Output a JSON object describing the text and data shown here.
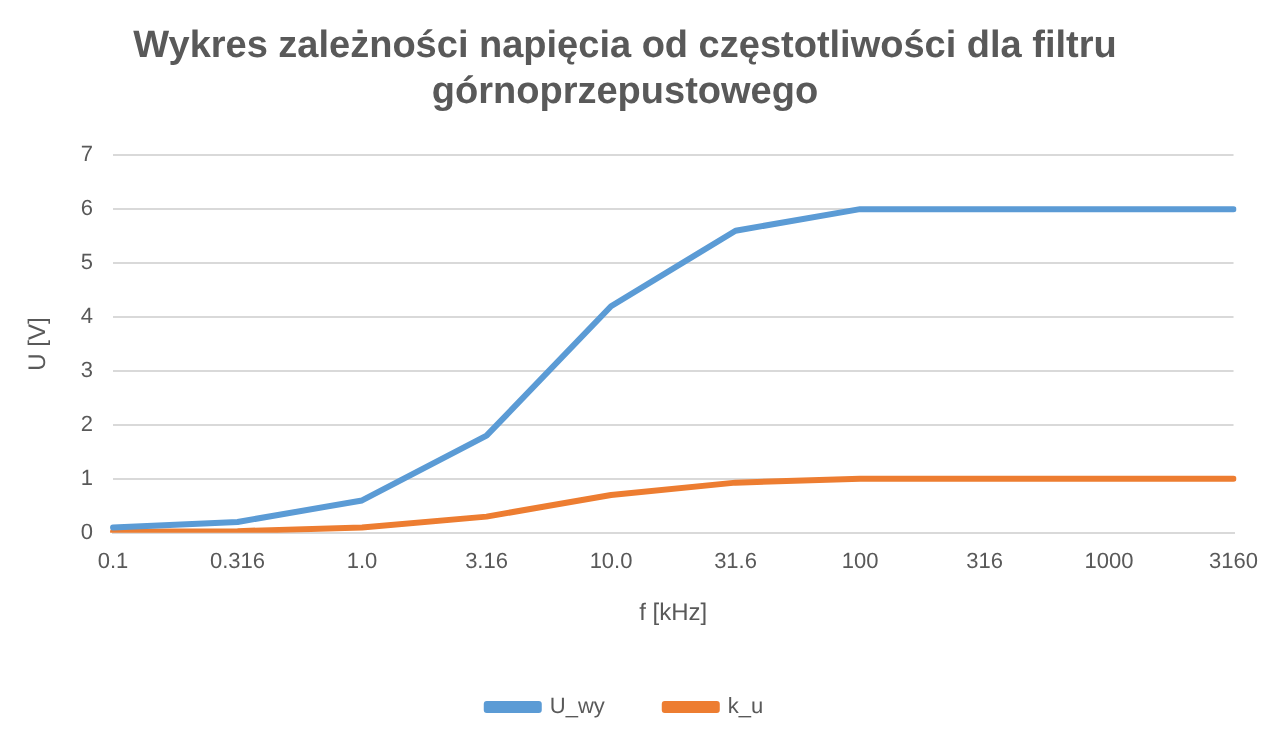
{
  "chart_data": {
    "type": "line",
    "title": "Wykres zależności napięcia od częstotliwości dla filtru górnoprzepustowego",
    "xlabel": "f [kHz]",
    "ylabel": "U [V]",
    "categories": [
      "0.1",
      "0.316",
      "1.0",
      "3.16",
      "10.0",
      "31.6",
      "100",
      "316",
      "1000",
      "3160"
    ],
    "series": [
      {
        "name": "U_wy",
        "color": "#5b9bd5",
        "values": [
          0.1,
          0.2,
          0.6,
          1.8,
          4.2,
          5.6,
          6,
          6,
          6,
          6
        ]
      },
      {
        "name": "k_u",
        "color": "#ed7d31",
        "values": [
          0.02,
          0.03,
          0.1,
          0.3,
          0.7,
          0.93,
          1,
          1,
          1,
          1
        ]
      }
    ],
    "ylim": [
      0,
      7
    ],
    "yticks": [
      0,
      1,
      2,
      3,
      4,
      5,
      6,
      7
    ],
    "grid": "y",
    "legend": "bottom",
    "marker": "none",
    "line_style": "solid"
  }
}
